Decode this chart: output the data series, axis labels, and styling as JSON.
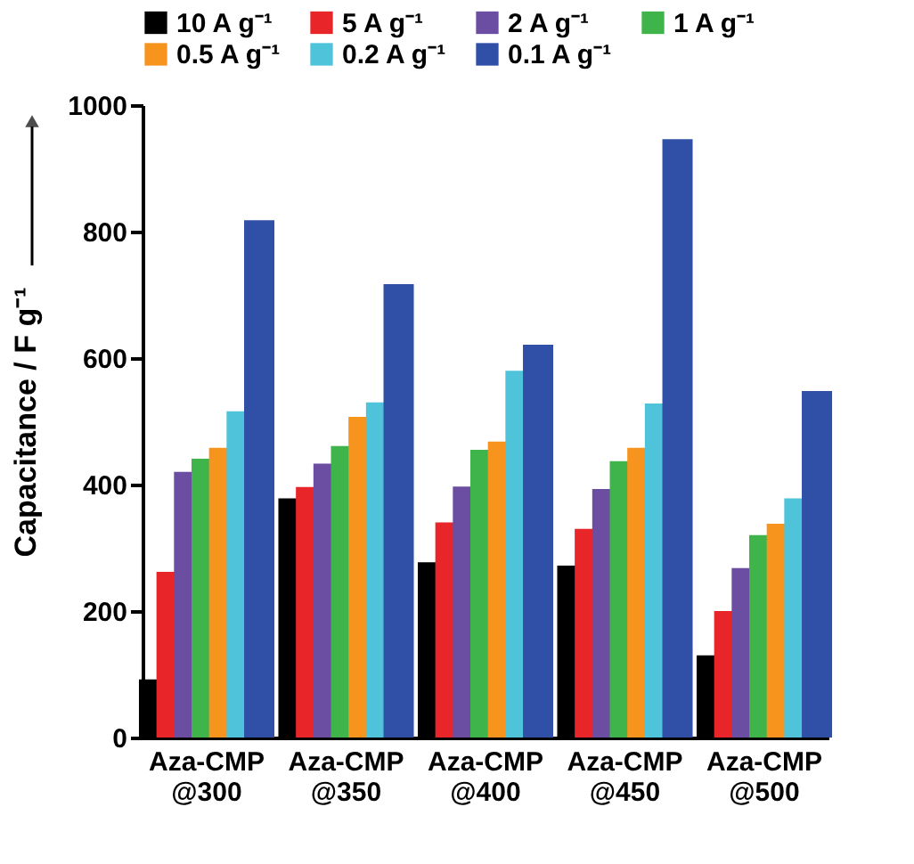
{
  "chart_data": {
    "type": "bar",
    "ylabel": "Capacitance / F g⁻¹",
    "categories": [
      "Aza-CMP @300",
      "Aza-CMP @350",
      "Aza-CMP @400",
      "Aza-CMP @450",
      "Aza-CMP @500"
    ],
    "series": [
      {
        "name": "10 A g⁻¹",
        "color": "#000000",
        "values": [
          92,
          378,
          277,
          272,
          130
        ]
      },
      {
        "name": "5 A g⁻¹",
        "color": "#e8262a",
        "values": [
          262,
          396,
          340,
          330,
          200
        ]
      },
      {
        "name": "2 A g⁻¹",
        "color": "#6b4ea2",
        "values": [
          420,
          433,
          397,
          393,
          268
        ]
      },
      {
        "name": "1 A g⁻¹",
        "color": "#3fb44a",
        "values": [
          441,
          461,
          455,
          437,
          320
        ]
      },
      {
        "name": "0.5 A g⁻¹",
        "color": "#f7941d",
        "values": [
          458,
          507,
          468,
          458,
          338
        ]
      },
      {
        "name": "0.2 A g⁻¹",
        "color": "#4fc3da",
        "values": [
          516,
          530,
          580,
          528,
          378
        ]
      },
      {
        "name": "0.1 A g⁻¹",
        "color": "#3050a8",
        "values": [
          818,
          717,
          621,
          946,
          548
        ]
      }
    ],
    "ylim": [
      0,
      1000
    ],
    "yticks": [
      0,
      200,
      400,
      600,
      800,
      1000
    ],
    "grid": false,
    "legend": "top"
  }
}
